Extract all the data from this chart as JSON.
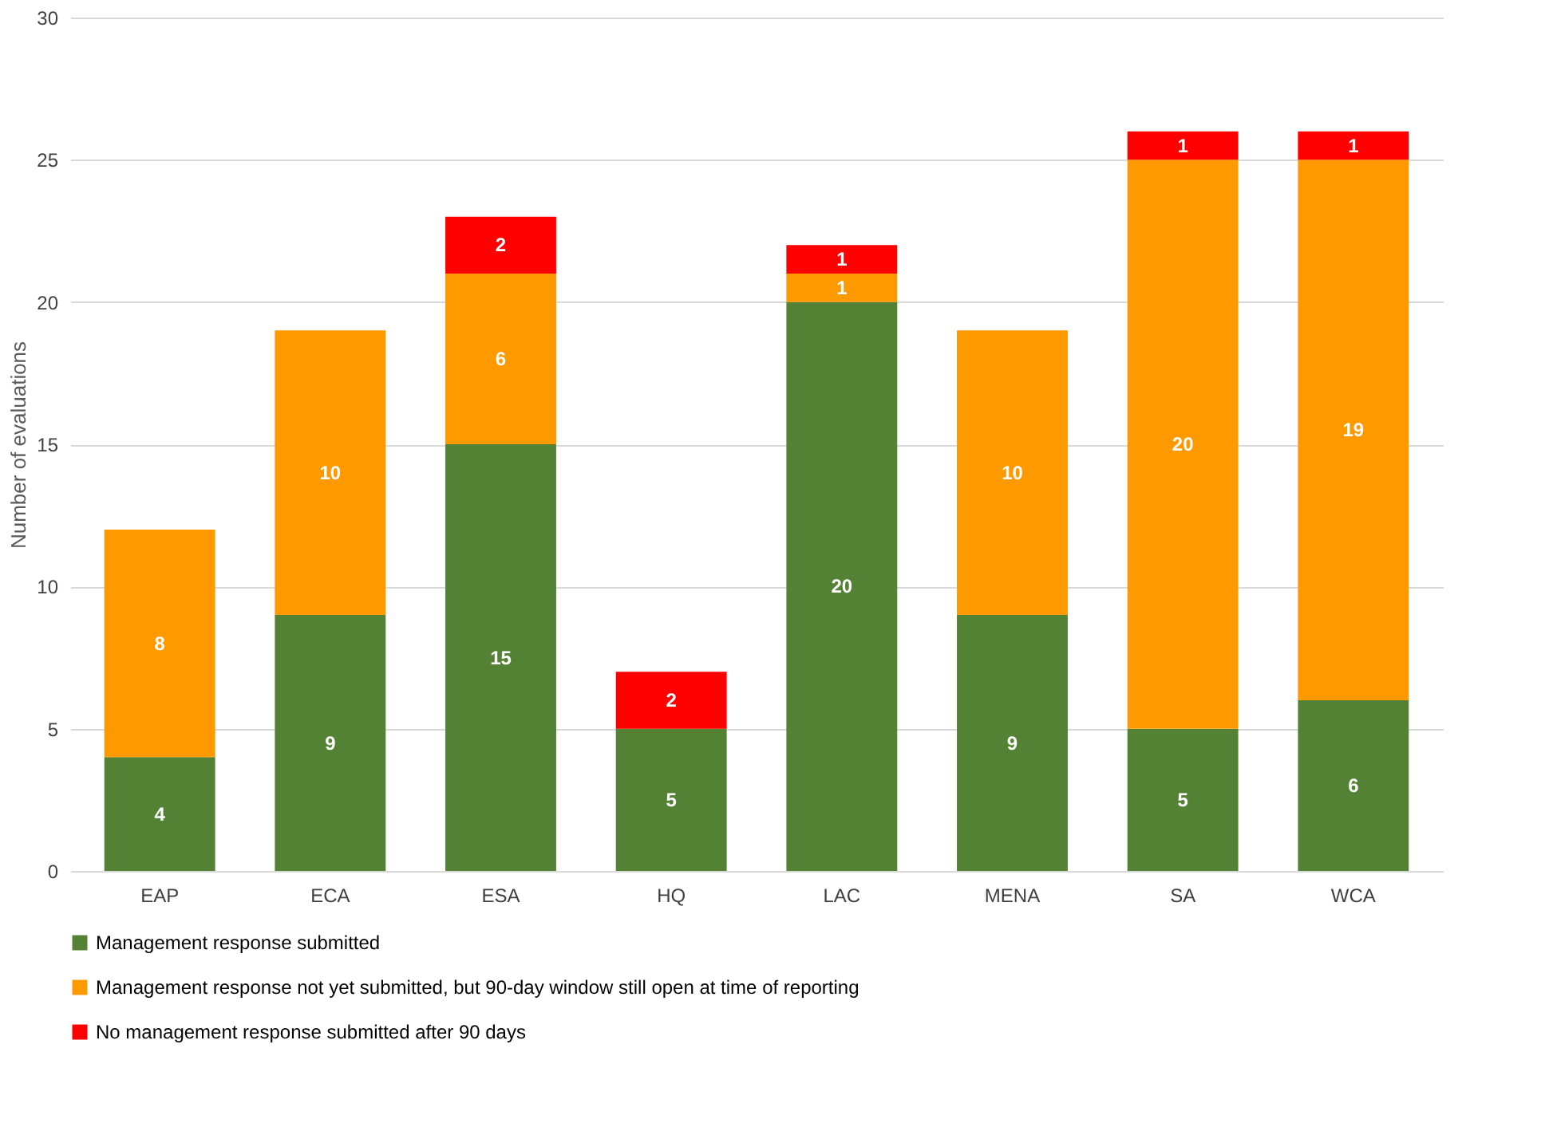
{
  "chart_data": {
    "type": "bar",
    "stacked": true,
    "ylabel": "Number of evaluations",
    "categories": [
      "EAP",
      "ECA",
      "ESA",
      "HQ",
      "LAC",
      "MENA",
      "SA",
      "WCA"
    ],
    "series": [
      {
        "name": "Management response submitted",
        "color": "#548235",
        "values": [
          4,
          9,
          15,
          5,
          20,
          9,
          5,
          6
        ]
      },
      {
        "name": "Management response not yet submitted, but 90-day window still open at time of reporting",
        "color": "#ff9900",
        "values": [
          8,
          10,
          6,
          null,
          1,
          10,
          20,
          19
        ]
      },
      {
        "name": "No management response submitted after 90 days",
        "color": "#ff0000",
        "values": [
          null,
          null,
          2,
          2,
          1,
          null,
          1,
          1
        ]
      }
    ],
    "ylim": [
      0,
      30
    ],
    "yticks": [
      0,
      5,
      10,
      15,
      20,
      25,
      30
    ],
    "grid": "y",
    "legend": "bottom",
    "data_labels": true
  }
}
